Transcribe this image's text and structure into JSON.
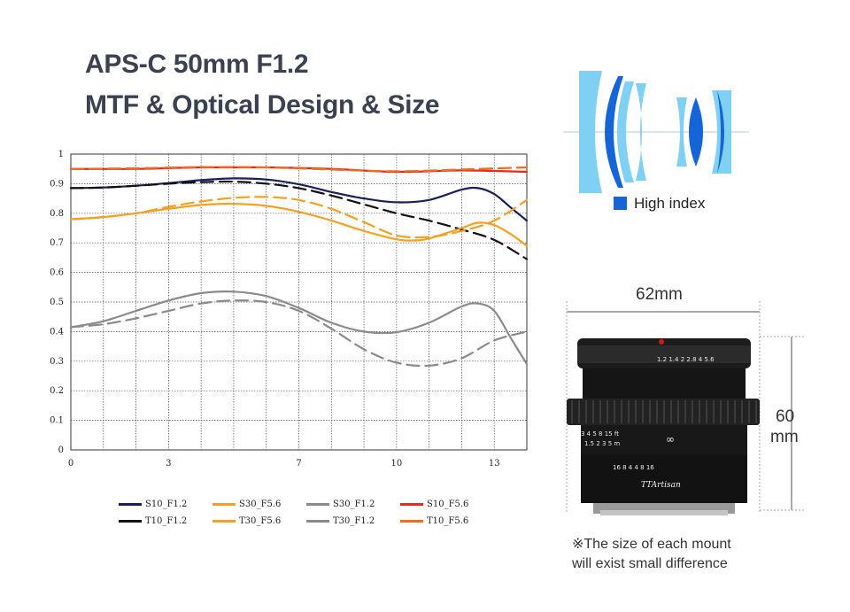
{
  "header": {
    "title_line1": "APS-C 50mm F1.2",
    "title_line2": "MTF & Optical Design & Size"
  },
  "chart_data": {
    "type": "line",
    "xlim": [
      0,
      14
    ],
    "ylim": [
      0,
      1
    ],
    "x_ticks": [
      "0",
      "3",
      "7",
      "10",
      "13"
    ],
    "y_ticks": [
      "0",
      "0.1",
      "0.2",
      "0.3",
      "0.4",
      "0.5",
      "0.6",
      "0.7",
      "0.8",
      "0.9",
      "1"
    ],
    "grid": true,
    "legend_position": "bottom",
    "series": [
      {
        "name": "S10_F1.2",
        "color": "#1a1f5c",
        "dash": false,
        "points": [
          [
            0,
            0.885
          ],
          [
            1,
            0.887
          ],
          [
            2,
            0.893
          ],
          [
            3,
            0.902
          ],
          [
            4,
            0.912
          ],
          [
            5,
            0.918
          ],
          [
            6,
            0.914
          ],
          [
            7,
            0.898
          ],
          [
            8,
            0.872
          ],
          [
            9,
            0.85
          ],
          [
            10,
            0.837
          ],
          [
            11,
            0.845
          ],
          [
            12,
            0.88
          ],
          [
            12.5,
            0.885
          ],
          [
            13,
            0.865
          ],
          [
            13.5,
            0.82
          ],
          [
            14,
            0.775
          ]
        ]
      },
      {
        "name": "T10_F1.2",
        "color": "#111111",
        "dash": true,
        "points": [
          [
            0,
            0.885
          ],
          [
            1,
            0.887
          ],
          [
            2,
            0.893
          ],
          [
            3,
            0.9
          ],
          [
            4,
            0.905
          ],
          [
            5,
            0.907
          ],
          [
            6,
            0.9
          ],
          [
            7,
            0.885
          ],
          [
            8,
            0.86
          ],
          [
            9,
            0.83
          ],
          [
            10,
            0.8
          ],
          [
            11,
            0.775
          ],
          [
            12,
            0.745
          ],
          [
            13,
            0.71
          ],
          [
            14,
            0.645
          ]
        ]
      },
      {
        "name": "S30_F5.6",
        "color": "#f2a125",
        "dash": false,
        "points": [
          [
            0,
            0.78
          ],
          [
            1,
            0.787
          ],
          [
            2,
            0.8
          ],
          [
            3,
            0.815
          ],
          [
            4,
            0.828
          ],
          [
            5,
            0.832
          ],
          [
            6,
            0.825
          ],
          [
            7,
            0.805
          ],
          [
            8,
            0.775
          ],
          [
            9,
            0.74
          ],
          [
            10,
            0.712
          ],
          [
            10.5,
            0.708
          ],
          [
            11,
            0.715
          ],
          [
            12,
            0.75
          ],
          [
            12.5,
            0.768
          ],
          [
            13,
            0.76
          ],
          [
            13.5,
            0.73
          ],
          [
            14,
            0.69
          ]
        ]
      },
      {
        "name": "T30_F5.6",
        "color": "#f2a125",
        "dash": true,
        "points": [
          [
            0,
            0.78
          ],
          [
            1,
            0.787
          ],
          [
            2,
            0.8
          ],
          [
            3,
            0.822
          ],
          [
            4,
            0.84
          ],
          [
            5,
            0.852
          ],
          [
            6,
            0.855
          ],
          [
            7,
            0.845
          ],
          [
            8,
            0.815
          ],
          [
            9,
            0.77
          ],
          [
            10,
            0.725
          ],
          [
            11,
            0.72
          ],
          [
            12,
            0.74
          ],
          [
            13,
            0.775
          ],
          [
            14,
            0.845
          ]
        ]
      },
      {
        "name": "S30_F1.2",
        "color": "#8a8a8a",
        "dash": false,
        "points": [
          [
            0,
            0.415
          ],
          [
            1,
            0.435
          ],
          [
            2,
            0.47
          ],
          [
            3,
            0.505
          ],
          [
            4,
            0.53
          ],
          [
            5,
            0.535
          ],
          [
            6,
            0.52
          ],
          [
            7,
            0.48
          ],
          [
            8,
            0.43
          ],
          [
            9,
            0.4
          ],
          [
            10,
            0.398
          ],
          [
            11,
            0.43
          ],
          [
            12,
            0.485
          ],
          [
            12.5,
            0.495
          ],
          [
            13,
            0.47
          ],
          [
            13.5,
            0.38
          ],
          [
            14,
            0.29
          ]
        ]
      },
      {
        "name": "T30_F1.2",
        "color": "#8a8a8a",
        "dash": true,
        "points": [
          [
            0,
            0.415
          ],
          [
            1,
            0.425
          ],
          [
            2,
            0.445
          ],
          [
            3,
            0.47
          ],
          [
            4,
            0.495
          ],
          [
            5,
            0.505
          ],
          [
            6,
            0.5
          ],
          [
            7,
            0.47
          ],
          [
            8,
            0.41
          ],
          [
            9,
            0.34
          ],
          [
            10,
            0.295
          ],
          [
            11,
            0.285
          ],
          [
            12,
            0.31
          ],
          [
            13,
            0.37
          ],
          [
            14,
            0.4
          ]
        ]
      },
      {
        "name": "S10_F5.6",
        "color": "#e8291c",
        "dash": false,
        "points": [
          [
            0,
            0.95
          ],
          [
            2,
            0.95
          ],
          [
            4,
            0.955
          ],
          [
            6,
            0.955
          ],
          [
            8,
            0.95
          ],
          [
            10,
            0.94
          ],
          [
            12,
            0.945
          ],
          [
            14,
            0.94
          ]
        ]
      },
      {
        "name": "T10_F5.6",
        "color": "#f26a1b",
        "dash": true,
        "points": [
          [
            0,
            0.95
          ],
          [
            2,
            0.952
          ],
          [
            4,
            0.956
          ],
          [
            6,
            0.955
          ],
          [
            8,
            0.948
          ],
          [
            10,
            0.942
          ],
          [
            12,
            0.948
          ],
          [
            14,
            0.955
          ]
        ]
      }
    ]
  },
  "legend": {
    "row1": [
      "S10_F1.2",
      "S30_F5.6",
      "S30_F1.2",
      "S10_F5.6"
    ],
    "row2": [
      "T10_F1.2",
      "T30_F5.6",
      "T30_F1.2",
      "T10_F5.6"
    ]
  },
  "optical": {
    "high_index_label": "High index",
    "high_index_color": "#1565d8",
    "normal_glass_color": "#7fd0f2"
  },
  "lens": {
    "width_label": "62mm",
    "height_label_value": "60",
    "height_label_unit": "mm",
    "aperture_scale": "1.2  1.4    2   2.8  4  5.6",
    "focus_ft": "3    4   5    8   15        ft",
    "focus_m": "1.5   2   3    5         m",
    "dof_scale": "16  8  4      4  8  16",
    "brand": "TTArtisan",
    "infinity": "∞"
  },
  "note": {
    "line1": "※The size of each mount",
    "line2": "will exist small difference"
  }
}
